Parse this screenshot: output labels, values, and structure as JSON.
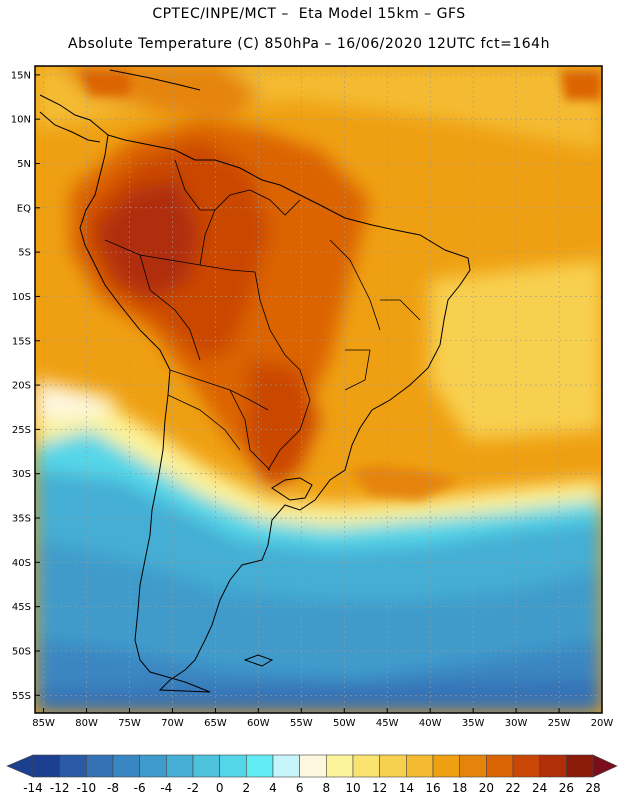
{
  "header": {
    "line1": "CPTEC/INPE/MCT –  Eta Model 15km – GFS",
    "line2": "Absolute Temperature (C) 850hPa – 16/06/2020 12UTC fct=164h"
  },
  "map": {
    "lat_labels": [
      "15N",
      "10N",
      "5N",
      "EQ",
      "5S",
      "10S",
      "15S",
      "20S",
      "25S",
      "30S",
      "35S",
      "40S",
      "45S",
      "50S",
      "55S"
    ],
    "lon_labels": [
      "85W",
      "80W",
      "75W",
      "70W",
      "65W",
      "60W",
      "55W",
      "50W",
      "45W",
      "40W",
      "35W",
      "30W",
      "25W",
      "20W"
    ],
    "lat_extent": [
      -57,
      16
    ],
    "lon_extent": [
      -86,
      -20
    ],
    "coastline_color": "#000000",
    "gridline_color": "#9a9a9a"
  },
  "colorbar": {
    "labels": [
      "-14",
      "-12",
      "-10",
      "-8",
      "-6",
      "-4",
      "-2",
      "0",
      "2",
      "4",
      "6",
      "8",
      "10",
      "12",
      "14",
      "16",
      "18",
      "20",
      "22",
      "24",
      "26",
      "28"
    ],
    "colors": [
      "#1c3f8f",
      "#2a5aa6",
      "#3471b5",
      "#3a86c2",
      "#3f9bcb",
      "#45aed4",
      "#4cc2dd",
      "#55d6e8",
      "#61ecf4",
      "#c6f4fb",
      "#fdf7df",
      "#fdf39a",
      "#fbe370",
      "#f8d04f",
      "#f4bb32",
      "#efa012",
      "#e5840a",
      "#db6405",
      "#ca4606",
      "#b02e08",
      "#8b1b0b"
    ],
    "under_color": "#1c3f8f",
    "over_color": "#7a0e1a"
  }
}
